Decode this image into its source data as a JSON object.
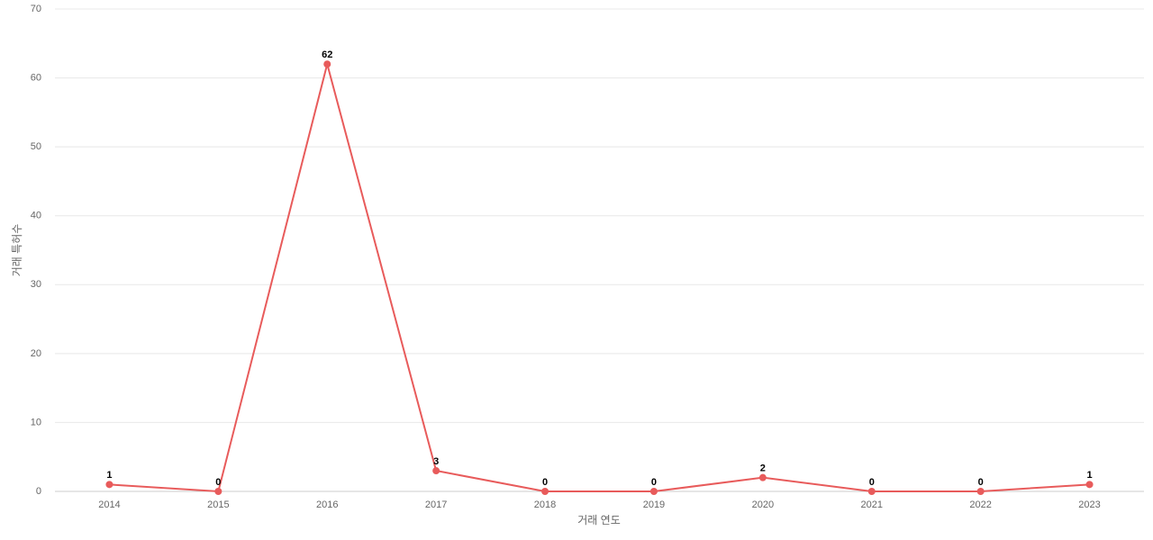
{
  "chart_data": {
    "type": "line",
    "x_label": "거래 연도",
    "y_label": "거래 특허수",
    "categories": [
      "2014",
      "2015",
      "2016",
      "2017",
      "2018",
      "2019",
      "2020",
      "2021",
      "2022",
      "2023"
    ],
    "series": [
      {
        "name": "거래 특허수",
        "color": "#e85b5b",
        "values": [
          1,
          0,
          62,
          3,
          0,
          0,
          2,
          0,
          0,
          1
        ]
      }
    ],
    "ylim": [
      0,
      70
    ],
    "yticks": [
      0,
      10,
      20,
      30,
      40,
      50,
      60,
      70
    ],
    "grid": true
  }
}
